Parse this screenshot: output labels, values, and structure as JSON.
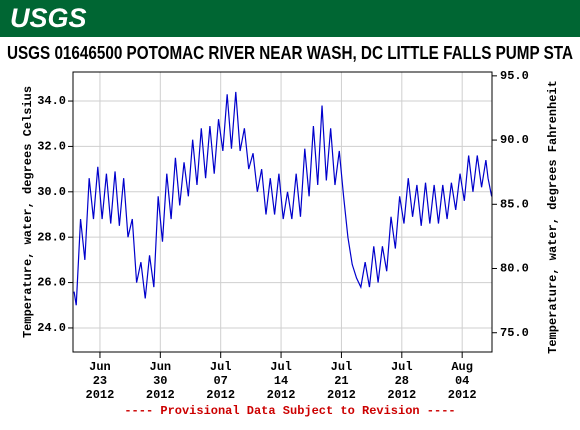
{
  "header": {
    "logo": "USGS"
  },
  "chart_data": {
    "type": "line",
    "title": "USGS 01646500 POTOMAC RIVER NEAR WASH, DC LITTLE FALLS PUMP STA",
    "ylabel": "Temperature, water, degrees Celsius",
    "y2label": "Temperature, water, degrees Fahrenheit",
    "footnote": "---- Provisional Data Subject to Revision ----",
    "x": [
      "2012-06-20T00:00",
      "2012-06-20T06:00",
      "2012-06-20T18:00",
      "2012-06-21T06:00",
      "2012-06-21T18:00",
      "2012-06-22T06:00",
      "2012-06-22T18:00",
      "2012-06-23T06:00",
      "2012-06-23T18:00",
      "2012-06-24T06:00",
      "2012-06-24T18:00",
      "2012-06-25T06:00",
      "2012-06-25T18:00",
      "2012-06-26T06:00",
      "2012-06-26T18:00",
      "2012-06-27T06:00",
      "2012-06-27T18:00",
      "2012-06-28T06:00",
      "2012-06-28T18:00",
      "2012-06-29T06:00",
      "2012-06-29T18:00",
      "2012-06-30T06:00",
      "2012-06-30T18:00",
      "2012-07-01T06:00",
      "2012-07-01T18:00",
      "2012-07-02T06:00",
      "2012-07-02T18:00",
      "2012-07-03T06:00",
      "2012-07-03T18:00",
      "2012-07-04T06:00",
      "2012-07-04T18:00",
      "2012-07-05T06:00",
      "2012-07-05T18:00",
      "2012-07-06T06:00",
      "2012-07-06T18:00",
      "2012-07-07T06:00",
      "2012-07-07T18:00",
      "2012-07-08T06:00",
      "2012-07-08T18:00",
      "2012-07-09T06:00",
      "2012-07-09T18:00",
      "2012-07-10T06:00",
      "2012-07-10T18:00",
      "2012-07-11T06:00",
      "2012-07-11T18:00",
      "2012-07-12T06:00",
      "2012-07-12T18:00",
      "2012-07-13T06:00",
      "2012-07-13T18:00",
      "2012-07-14T06:00",
      "2012-07-14T18:00",
      "2012-07-15T06:00",
      "2012-07-15T18:00",
      "2012-07-16T06:00",
      "2012-07-16T18:00",
      "2012-07-17T06:00",
      "2012-07-17T18:00",
      "2012-07-18T06:00",
      "2012-07-18T18:00",
      "2012-07-19T06:00",
      "2012-07-19T18:00",
      "2012-07-20T06:00",
      "2012-07-20T18:00",
      "2012-07-21T06:00",
      "2012-07-21T18:00",
      "2012-07-22T06:00",
      "2012-07-22T18:00",
      "2012-07-23T06:00",
      "2012-07-23T18:00",
      "2012-07-24T06:00",
      "2012-07-24T18:00",
      "2012-07-25T06:00",
      "2012-07-25T18:00",
      "2012-07-26T06:00",
      "2012-07-26T18:00",
      "2012-07-27T06:00",
      "2012-07-27T18:00",
      "2012-07-28T06:00",
      "2012-07-28T18:00",
      "2012-07-29T06:00",
      "2012-07-29T18:00",
      "2012-07-30T06:00",
      "2012-07-30T18:00",
      "2012-07-31T06:00",
      "2012-07-31T18:00",
      "2012-08-01T06:00",
      "2012-08-01T18:00",
      "2012-08-02T06:00",
      "2012-08-02T18:00",
      "2012-08-03T06:00",
      "2012-08-03T18:00",
      "2012-08-04T06:00",
      "2012-08-04T18:00",
      "2012-08-05T06:00",
      "2012-08-05T18:00",
      "2012-08-06T06:00",
      "2012-08-06T18:00",
      "2012-08-07T00:00",
      "2012-08-07T10:00"
    ],
    "series": [
      {
        "color": "#0000cc",
        "values": [
          25.6,
          25.0,
          28.8,
          27.0,
          30.6,
          28.8,
          31.1,
          28.8,
          30.8,
          28.6,
          30.9,
          28.5,
          30.6,
          28.0,
          28.8,
          26.0,
          26.9,
          25.3,
          27.2,
          25.8,
          29.8,
          27.8,
          30.8,
          28.8,
          31.5,
          29.4,
          31.3,
          29.8,
          32.3,
          30.3,
          32.8,
          30.6,
          32.9,
          30.8,
          33.2,
          31.8,
          34.3,
          31.9,
          34.4,
          31.8,
          32.8,
          31.0,
          31.7,
          30.0,
          31.0,
          29.0,
          30.6,
          29.0,
          30.8,
          28.8,
          30.0,
          28.8,
          30.8,
          28.9,
          31.9,
          29.8,
          32.9,
          30.3,
          33.8,
          30.5,
          32.8,
          30.3,
          31.8,
          29.8,
          28.0,
          26.8,
          26.2,
          25.8,
          26.9,
          25.8,
          27.6,
          26.0,
          27.6,
          26.5,
          28.9,
          27.5,
          29.8,
          28.6,
          30.6,
          28.9,
          30.3,
          28.5,
          30.4,
          28.6,
          30.3,
          28.6,
          30.3,
          28.8,
          30.4,
          29.2,
          30.8,
          29.6,
          31.6,
          30.0,
          31.6,
          30.2,
          31.4,
          30.6,
          29.8
        ]
      }
    ],
    "xlim": [
      "2012-06-19T21:00",
      "2012-08-07T11:00"
    ],
    "xticks": [
      {
        "value": "2012-06-23T00:00",
        "label": [
          "Jun",
          "23",
          "2012"
        ]
      },
      {
        "value": "2012-06-30T00:00",
        "label": [
          "Jun",
          "30",
          "2012"
        ]
      },
      {
        "value": "2012-07-07T00:00",
        "label": [
          "Jul",
          "07",
          "2012"
        ]
      },
      {
        "value": "2012-07-14T00:00",
        "label": [
          "Jul",
          "14",
          "2012"
        ]
      },
      {
        "value": "2012-07-21T00:00",
        "label": [
          "Jul",
          "21",
          "2012"
        ]
      },
      {
        "value": "2012-07-28T00:00",
        "label": [
          "Jul",
          "28",
          "2012"
        ]
      },
      {
        "value": "2012-08-04T00:00",
        "label": [
          "Aug",
          "04",
          "2012"
        ]
      }
    ],
    "ylim": [
      22.94,
      35.28
    ],
    "yticks": [
      {
        "value": 24,
        "label": "24.0"
      },
      {
        "value": 26,
        "label": "26.0"
      },
      {
        "value": 28,
        "label": "28.0"
      },
      {
        "value": 30,
        "label": "30.0"
      },
      {
        "value": 32,
        "label": "32.0"
      },
      {
        "value": 34,
        "label": "34.0"
      }
    ],
    "y2lim": [
      73.5,
      95.3
    ],
    "y2ticks": [
      {
        "value": 75,
        "label": "75.0"
      },
      {
        "value": 80,
        "label": "80.0"
      },
      {
        "value": 85,
        "label": "85.0"
      },
      {
        "value": 90,
        "label": "90.0"
      },
      {
        "value": 95,
        "label": "95.0"
      }
    ],
    "grid": true
  }
}
